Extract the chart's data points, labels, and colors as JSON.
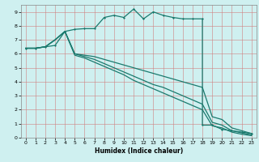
{
  "title": "",
  "xlabel": "Humidex (Indice chaleur)",
  "background_color": "#cff0f0",
  "grid_color": "#b0d8d8",
  "line_color": "#1a7a6e",
  "xlim": [
    -0.5,
    23.5
  ],
  "ylim": [
    0,
    9.5
  ],
  "xticks": [
    0,
    1,
    2,
    3,
    4,
    5,
    6,
    7,
    8,
    9,
    10,
    11,
    12,
    13,
    14,
    15,
    16,
    17,
    18,
    19,
    20,
    21,
    22,
    23
  ],
  "yticks": [
    0,
    1,
    2,
    3,
    4,
    5,
    6,
    7,
    8,
    9
  ],
  "curve1_x": [
    0,
    1,
    2,
    3,
    4,
    5,
    6,
    7,
    8,
    9,
    10,
    11,
    12,
    13,
    14,
    15,
    16,
    17,
    18,
    18,
    19,
    20,
    21,
    22,
    23
  ],
  "curve1_y": [
    6.4,
    6.4,
    6.5,
    6.6,
    7.6,
    7.75,
    7.8,
    7.8,
    8.6,
    8.75,
    8.6,
    9.2,
    8.5,
    9.0,
    8.75,
    8.6,
    8.5,
    8.5,
    8.5,
    0.9,
    0.9,
    0.6,
    0.5,
    0.4,
    0.3
  ],
  "curve2_x": [
    0,
    1,
    2,
    3,
    4,
    5,
    6,
    7,
    8,
    9,
    10,
    11,
    12,
    13,
    14,
    15,
    16,
    17,
    18,
    19,
    20,
    21,
    22,
    23
  ],
  "curve2_y": [
    6.4,
    6.4,
    6.5,
    7.0,
    7.6,
    6.0,
    5.9,
    5.8,
    5.6,
    5.4,
    5.2,
    5.0,
    4.8,
    4.6,
    4.4,
    4.2,
    4.0,
    3.8,
    3.6,
    1.5,
    1.3,
    0.7,
    0.5,
    0.3
  ],
  "curve3_x": [
    0,
    1,
    2,
    3,
    4,
    5,
    6,
    7,
    8,
    9,
    10,
    11,
    12,
    13,
    14,
    15,
    16,
    17,
    18,
    19,
    20,
    21,
    22,
    23
  ],
  "curve3_y": [
    6.4,
    6.4,
    6.5,
    7.0,
    7.6,
    6.0,
    5.8,
    5.6,
    5.3,
    5.0,
    4.7,
    4.4,
    4.1,
    3.8,
    3.6,
    3.3,
    3.0,
    2.7,
    2.4,
    1.1,
    0.9,
    0.5,
    0.35,
    0.2
  ],
  "curve4_x": [
    0,
    1,
    2,
    3,
    4,
    5,
    6,
    7,
    8,
    9,
    10,
    11,
    12,
    13,
    14,
    15,
    16,
    17,
    18,
    19,
    20,
    21,
    22,
    23
  ],
  "curve4_y": [
    6.4,
    6.4,
    6.5,
    7.0,
    7.6,
    5.9,
    5.7,
    5.4,
    5.1,
    4.8,
    4.5,
    4.1,
    3.8,
    3.5,
    3.2,
    2.9,
    2.6,
    2.3,
    2.0,
    0.85,
    0.7,
    0.4,
    0.25,
    0.15
  ]
}
